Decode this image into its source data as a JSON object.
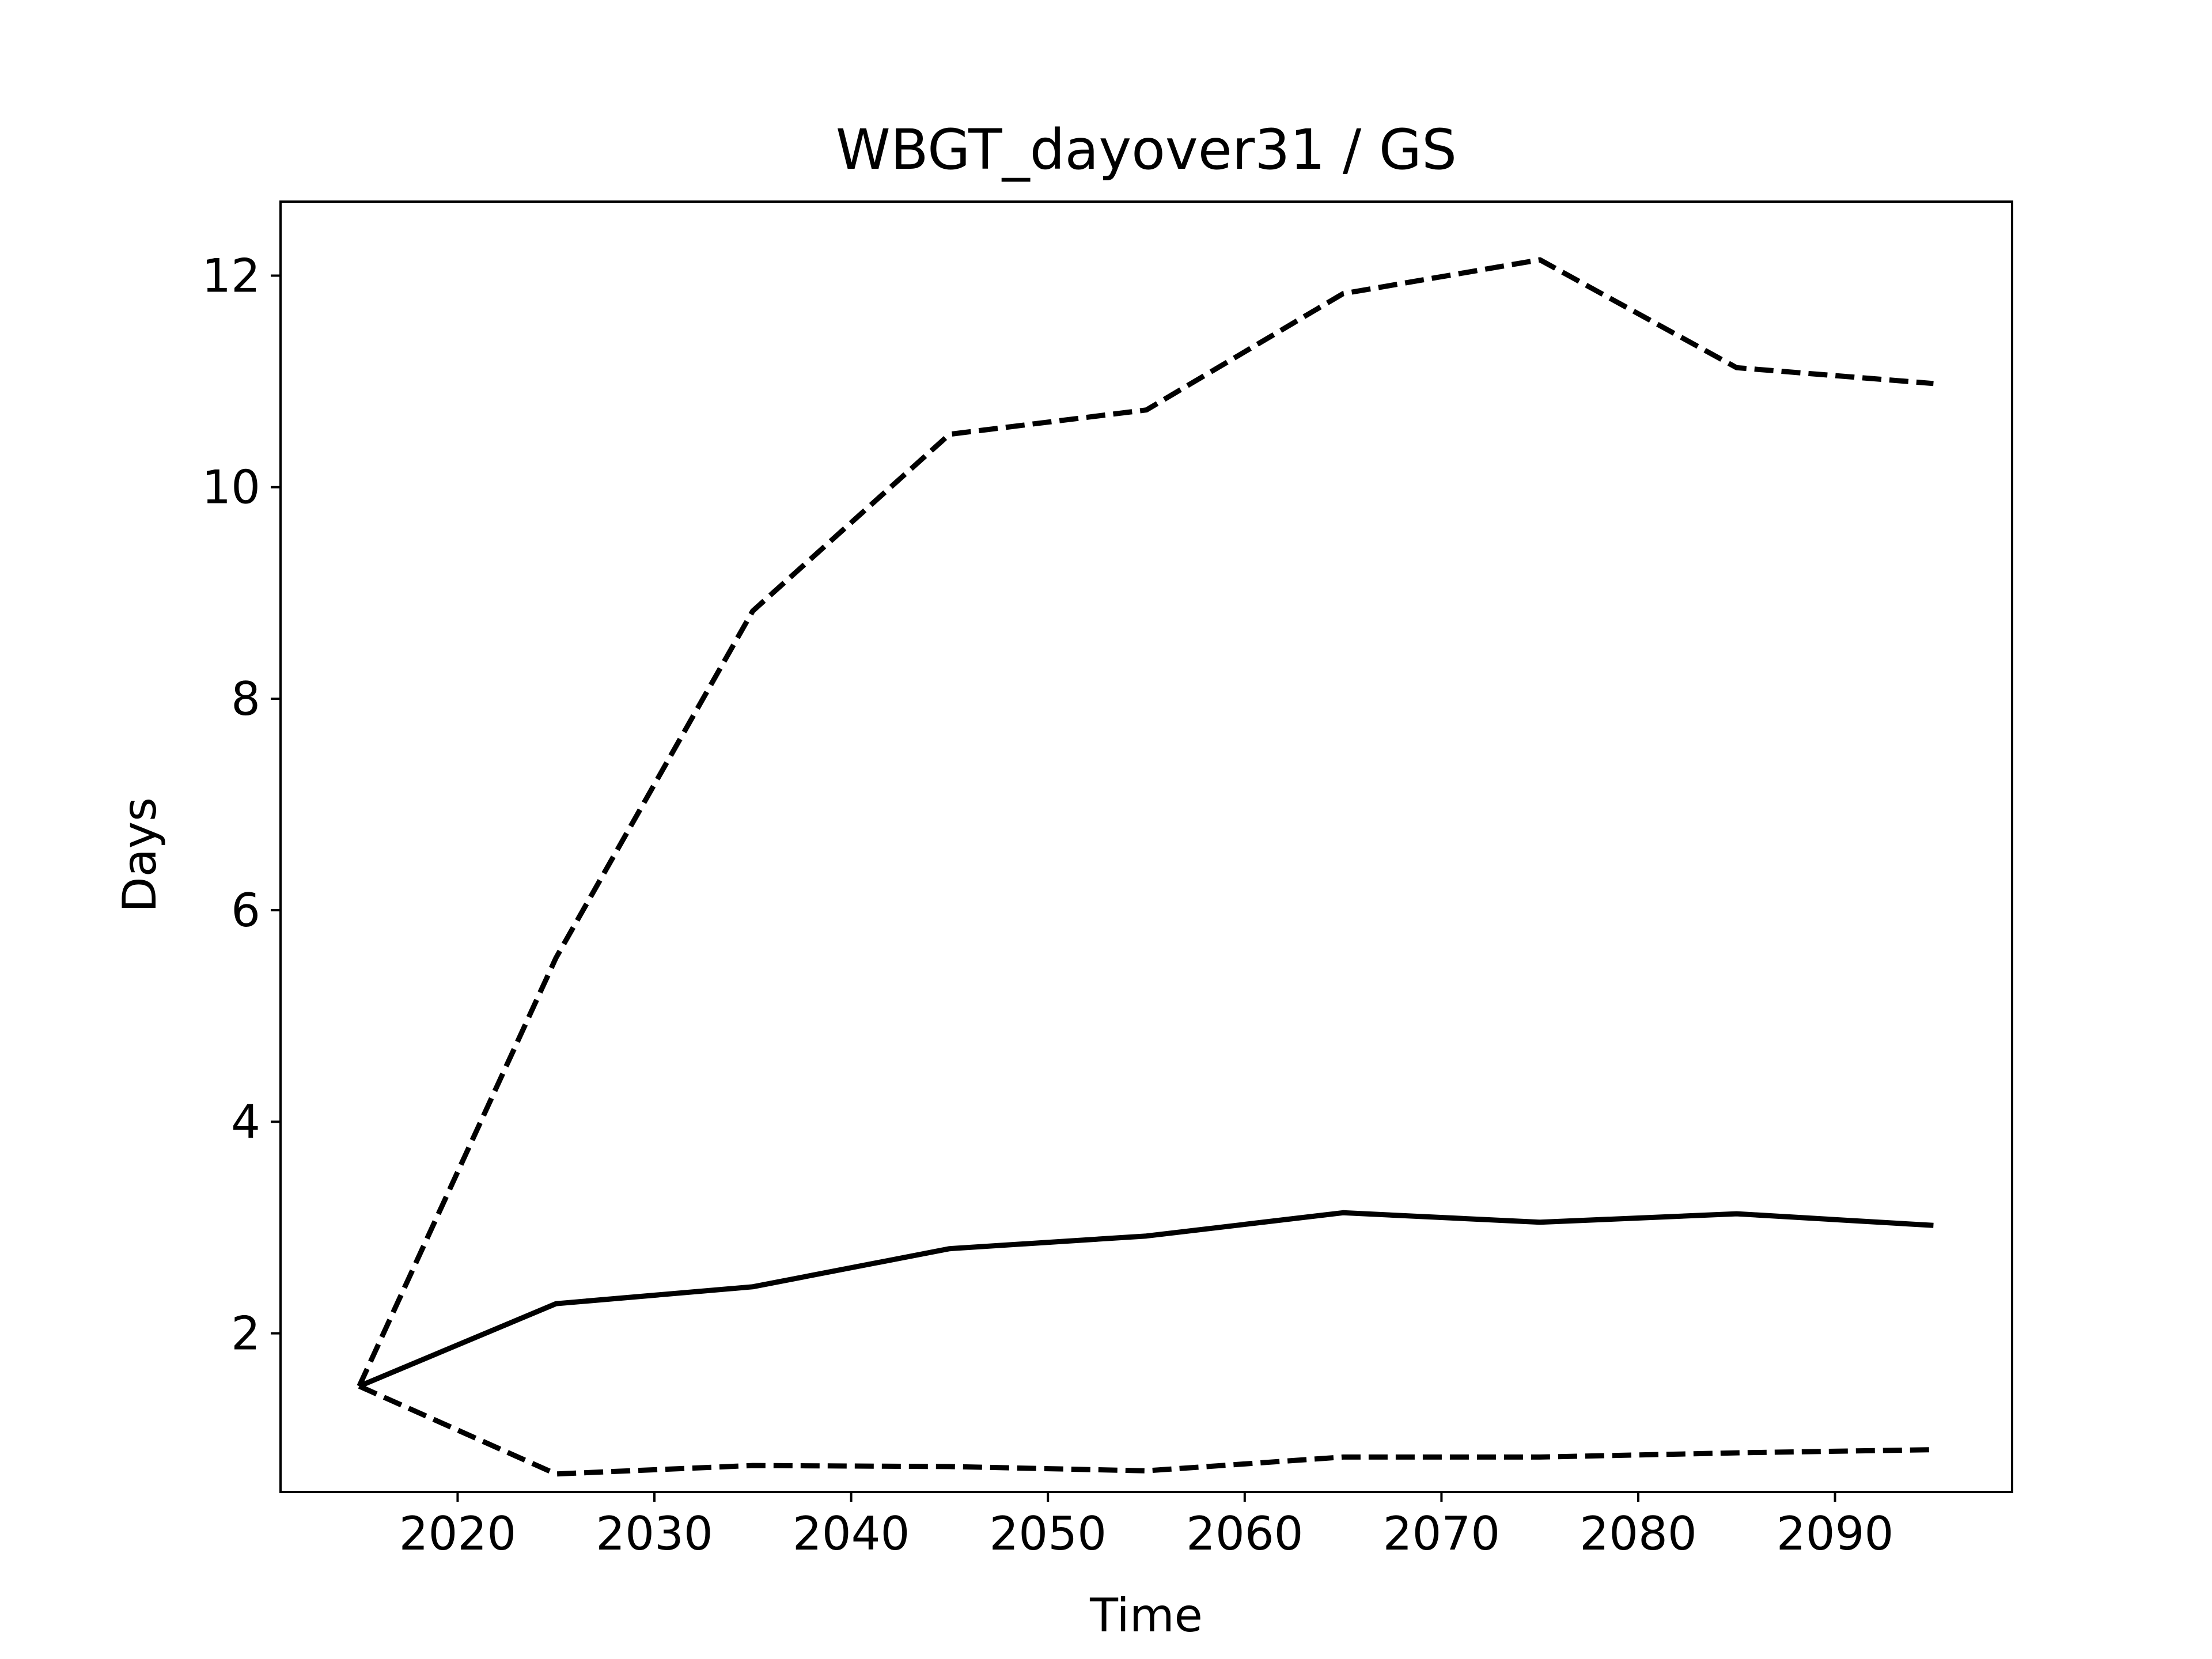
{
  "chart_data": {
    "type": "line",
    "title": "WBGT_dayover31 / GS",
    "xlabel": "Time",
    "ylabel": "Days",
    "xlim": [
      2011,
      2099
    ],
    "ylim": [
      0.5,
      12.7
    ],
    "xticks": [
      2020,
      2030,
      2040,
      2050,
      2060,
      2070,
      2080,
      2090
    ],
    "yticks": [
      2,
      4,
      6,
      8,
      10,
      12
    ],
    "grid": false,
    "x": [
      2015,
      2025,
      2035,
      2045,
      2055,
      2065,
      2075,
      2085,
      2095
    ],
    "series": [
      {
        "style": "solid",
        "color": "#000000",
        "values": [
          1.5,
          2.28,
          2.44,
          2.8,
          2.92,
          3.14,
          3.05,
          3.13,
          3.02
        ]
      },
      {
        "style": "dashed",
        "color": "#000000",
        "values": [
          1.5,
          5.55,
          8.83,
          10.5,
          10.73,
          11.83,
          12.15,
          11.13,
          10.98
        ]
      },
      {
        "style": "dashed",
        "color": "#000000",
        "values": [
          1.5,
          0.67,
          0.75,
          0.74,
          0.7,
          0.83,
          0.83,
          0.87,
          0.9
        ]
      }
    ]
  }
}
